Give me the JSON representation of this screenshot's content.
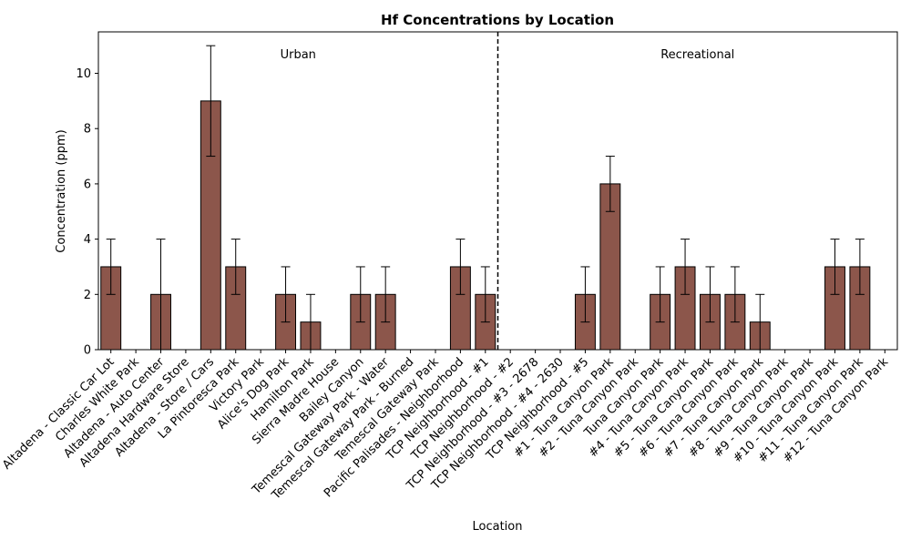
{
  "chart_data": {
    "type": "bar",
    "title": "Hf Concentrations by Location",
    "xlabel": "Location",
    "ylabel": "Concentration (ppm)",
    "ylim": [
      0,
      11.5
    ],
    "yticks": [
      0,
      2,
      4,
      6,
      8,
      10
    ],
    "grid": false,
    "bar_color": "#8c564b",
    "errorbar_color": "#000000",
    "categories": [
      "Altadena - Classic Car Lot",
      "Charles White Park",
      "Altadena - Auto Center",
      "Altadena Hardware Store",
      "Altadena - Store / Cars",
      "La Pintoresca Park",
      "Victory Park",
      "Alice's Dog Park",
      "Hamilton Park",
      "Sierra Madre House",
      "Bailey Canyon",
      "Temescal Gateway Park - Water",
      "Temescal Gateway Park - Burned",
      "Temescal Gateway Park",
      "Pacific Palisades - Neighborhood",
      "TCP Neighborhood - #1",
      "TCP Neighborhood - #2",
      "TCP Neighborhood - #3 - 2678",
      "TCP Neighborhood - #4 - 2630",
      "TCP Neighborhood - #5",
      "#1 - Tuna Canyon Park",
      "#2 - Tuna Canyon Park",
      "Tuna Canyon Park",
      "#4 - Tuna Canyon Park",
      "#5 - Tuna Canyon Park",
      "#6 - Tuna Canyon Park",
      "#7 - Tuna Canyon Park",
      "#8 - Tuna Canyon Park",
      "#9 - Tuna Canyon Park",
      "#10 - Tuna Canyon Park",
      "#11 - Tuna Canyon Park",
      "#12 - Tuna Canyon Park"
    ],
    "values": [
      3,
      0,
      2,
      0,
      9,
      3,
      0,
      2,
      1,
      0,
      2,
      2,
      0,
      0,
      3,
      2,
      0,
      0,
      0,
      2,
      6,
      0,
      2,
      3,
      2,
      2,
      1,
      0,
      0,
      3,
      3,
      0
    ],
    "errors": [
      1,
      0,
      2,
      0,
      2,
      1,
      0,
      1,
      1,
      0,
      1,
      1,
      0,
      0,
      1,
      1,
      0,
      0,
      0,
      1,
      1,
      0,
      1,
      1,
      1,
      1,
      1,
      0,
      0,
      1,
      1,
      0
    ],
    "divider_after_index": 15,
    "divider_style": "dashed",
    "annotations": [
      {
        "text": "Urban",
        "anchor": "left-group"
      },
      {
        "text": "Recreational",
        "anchor": "right-group"
      }
    ]
  }
}
